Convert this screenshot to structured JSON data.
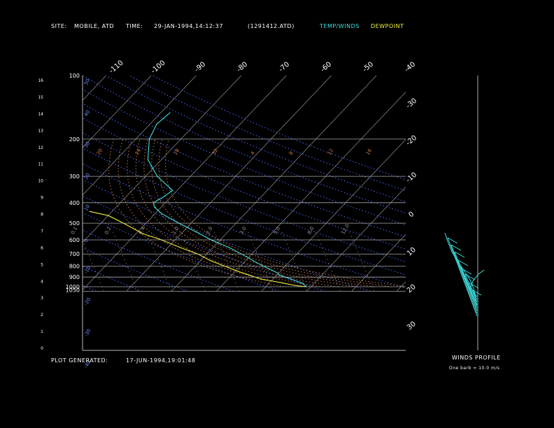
{
  "header": {
    "site_label": "SITE:",
    "site_value": "MOBILE, ATD",
    "time_label": "TIME:",
    "time_value": "29-JAN-1994,14:12:37",
    "file_id": "(1291412.ATD)",
    "legend_temp": "TEMP/WINDS",
    "legend_dew": "DEWPOINT",
    "temp_color": "#40e0e0",
    "dew_color": "#f0f040"
  },
  "footer": {
    "generated_label": "PLOT GENERATED:",
    "generated_value": "17-JUN-1994,19:01:48",
    "winds_title": "WINDS PROFILE",
    "winds_note": "One barb = 10.0 m/s"
  },
  "chart_data": {
    "type": "line",
    "diagram": "skew-T log-P",
    "pressure_ticks": [
      "100",
      "200",
      "300",
      "400",
      "500",
      "600",
      "700",
      "800",
      "900",
      "1000",
      "1050"
    ],
    "pressure_values": [
      100,
      200,
      300,
      400,
      500,
      600,
      700,
      800,
      900,
      1000,
      1050
    ],
    "height_ticks": [
      "16",
      "15",
      "14",
      "13",
      "12",
      "11",
      "10",
      "9",
      "8",
      "7",
      "6",
      "5",
      "4",
      "3",
      "2",
      "1",
      "0"
    ],
    "temperature_ticks": [
      "-110",
      "-100",
      "-90",
      "-80",
      "-70",
      "-60",
      "-50",
      "-40",
      "-30",
      "-20",
      "-10",
      "0",
      "10",
      "20",
      "30"
    ],
    "mixing_ratio_labels": [
      "0.1",
      "0.2",
      "0.4",
      "1.0",
      "2.0",
      "3.0",
      "5.0",
      "8.0",
      "12.0"
    ],
    "dry_adiabat_labels": [
      "50",
      "40",
      "30",
      "20",
      "10",
      "0",
      "-10",
      "-20",
      "-30",
      "-40"
    ],
    "moist_adiabat_labels": [
      "20",
      "24",
      "28",
      "32",
      "4",
      "8",
      "12",
      "16"
    ],
    "series": [
      {
        "name": "TEMP/WINDS",
        "color": "#40e0e0",
        "pressure": [
          1000,
          960,
          920,
          880,
          850,
          800,
          750,
          700,
          650,
          600,
          560,
          500,
          450,
          420,
          400,
          380,
          350,
          300,
          250,
          200,
          170,
          150
        ],
        "temperature": [
          9,
          7.2,
          4,
          0.6,
          -1,
          -4.8,
          -8.5,
          -12.3,
          -16.6,
          -22,
          -26,
          -32.7,
          -38.6,
          -41.5,
          -42.7,
          -41.8,
          -41,
          -47.4,
          -53,
          -57,
          -58.5,
          -58
        ]
      },
      {
        "name": "DEWPOINT",
        "color": "#f0f040",
        "pressure": [
          1000,
          985,
          960,
          920,
          880,
          850,
          800,
          750,
          700,
          650,
          600,
          560,
          500,
          460,
          440
        ],
        "temperature": [
          9,
          6,
          3,
          -2.7,
          -6.2,
          -9,
          -13.4,
          -18,
          -22,
          -27.5,
          -33,
          -38.6,
          -45,
          -50,
          -55
        ]
      }
    ],
    "xlim": [
      -40,
      40
    ],
    "ylim": [
      1050,
      100
    ]
  }
}
